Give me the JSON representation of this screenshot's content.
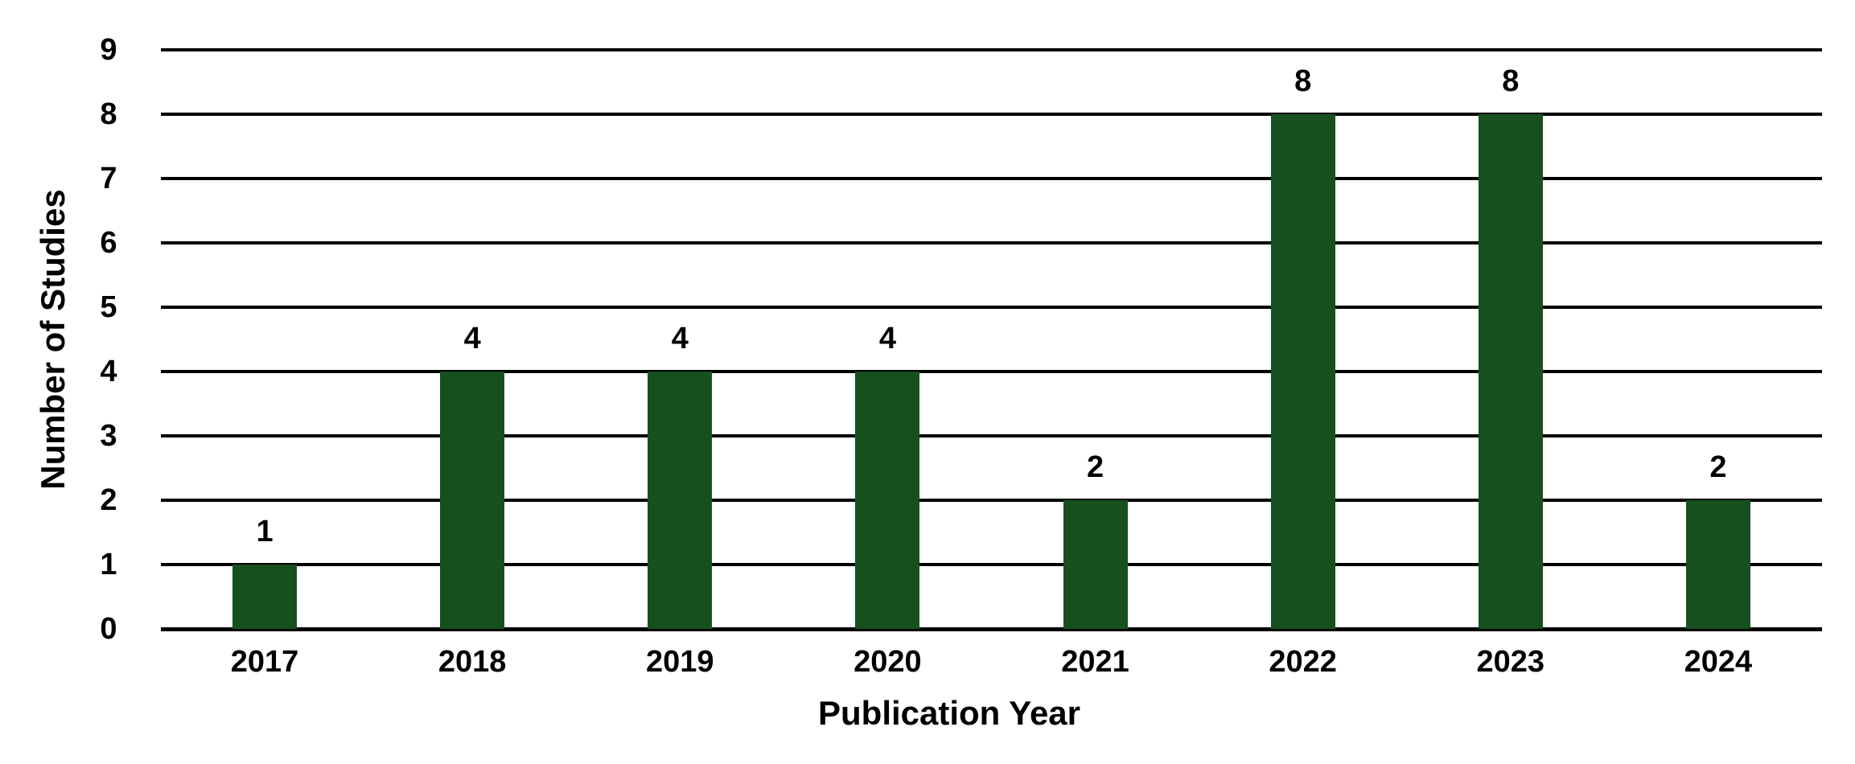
{
  "chart_data": {
    "type": "bar",
    "title": "",
    "categories": [
      "2017",
      "2018",
      "2019",
      "2020",
      "2021",
      "2022",
      "2023",
      "2024"
    ],
    "values": [
      1,
      4,
      4,
      4,
      2,
      8,
      8,
      2
    ],
    "data_labels": [
      "1",
      "4",
      "4",
      "4",
      "2",
      "8",
      "8",
      "2"
    ],
    "xlabel": "Publication Year",
    "ylabel": "Number of Studies",
    "ylim": [
      0,
      9
    ],
    "yticks": [
      0,
      1,
      2,
      3,
      4,
      5,
      6,
      7,
      8,
      9
    ],
    "grid": true,
    "legend_position": "none",
    "colors": {
      "bar": "#15501E",
      "grid": "#000000",
      "baseline": "#000000",
      "text": "#000000",
      "background": "#FFFFFF"
    }
  }
}
